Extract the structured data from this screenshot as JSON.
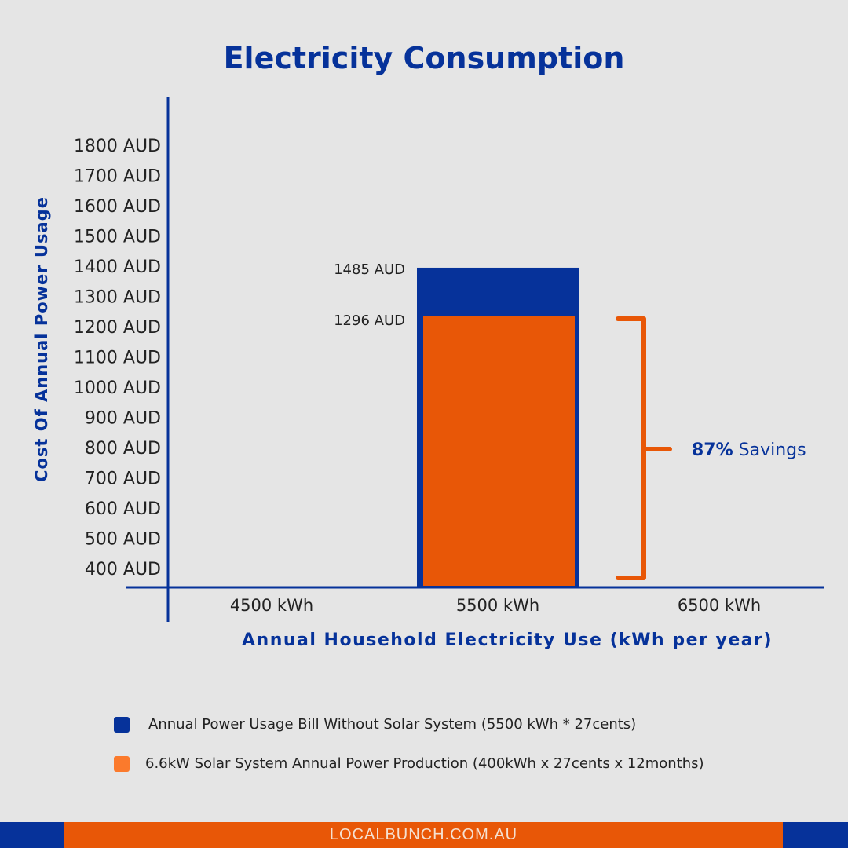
{
  "chart_data": {
    "type": "bar",
    "title": "Electricity Consumption",
    "xlabel": "Annual Household Electricity Use (kWh per year)",
    "ylabel": "Cost Of Annual Power Usage",
    "categories": [
      "4500 kWh",
      "5500 kWh",
      "6500 kWh"
    ],
    "yticks": [
      "1800 AUD",
      "1700 AUD",
      "1600 AUD",
      "1500 AUD",
      "1400 AUD",
      "1300 AUD",
      "1200 AUD",
      "1100 AUD",
      "1000 AUD",
      "900 AUD",
      "800 AUD",
      "700 AUD",
      "600 AUD",
      "500 AUD",
      "400 AUD"
    ],
    "series": [
      {
        "name": "Annual Power Usage Bill Without Solar System (5500 kWh * 27cents)",
        "values": [
          null,
          1485,
          null
        ],
        "labels": [
          null,
          "1485 AUD",
          null
        ],
        "color": "#06329a"
      },
      {
        "name": "6.6kW Solar System Annual Power Production (400kWh x 27cents x 12months)",
        "values": [
          null,
          1296,
          null
        ],
        "labels": [
          null,
          "1296 AUD",
          null
        ],
        "color": "#e85707"
      }
    ],
    "annotation": {
      "percent": "87%",
      "text": "Savings"
    },
    "legend": "bottom",
    "grid": false
  },
  "footer": "LOCALBUNCH.COM.AU"
}
